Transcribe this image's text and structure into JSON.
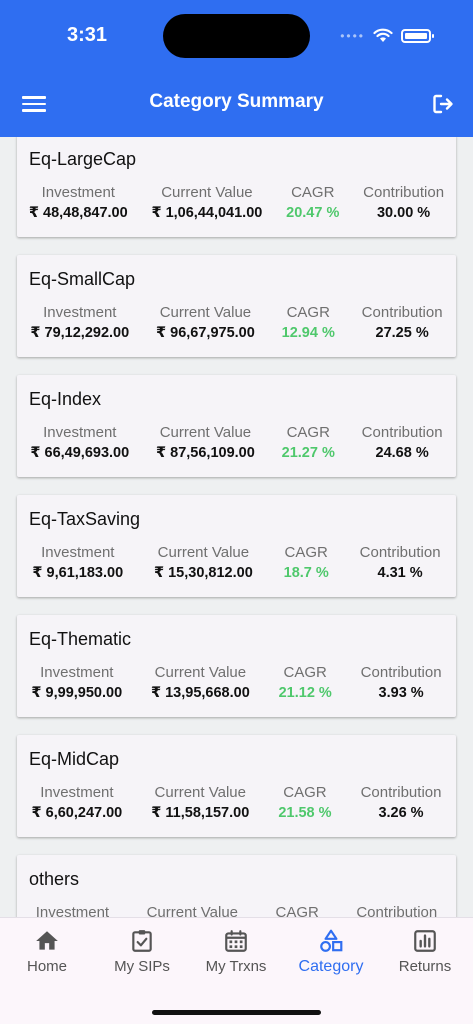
{
  "status_bar": {
    "time": "3:31",
    "dots": "••••",
    "wifi_icon": "wifi-icon",
    "battery_icon": "battery-icon"
  },
  "header": {
    "title": "Category Summary",
    "menu_icon": "hamburger-menu-icon",
    "logout_icon": "logout-icon"
  },
  "labels": {
    "investment": "Investment",
    "current_value": "Current Value",
    "cagr": "CAGR",
    "contribution": "Contribution"
  },
  "colors": {
    "primary": "#2f6ef1",
    "cagr_green": "#4fc86c"
  },
  "categories": [
    {
      "name": "Eq-LargeCap",
      "investment": "₹ 48,48,847.00",
      "current_value": "₹ 1,06,44,041.00",
      "cagr": "20.47 %",
      "contribution": "30.00 %"
    },
    {
      "name": "Eq-SmallCap",
      "investment": "₹ 79,12,292.00",
      "current_value": "₹ 96,67,975.00",
      "cagr": "12.94 %",
      "contribution": "27.25 %"
    },
    {
      "name": "Eq-Index",
      "investment": "₹ 66,49,693.00",
      "current_value": "₹ 87,56,109.00",
      "cagr": "21.27 %",
      "contribution": "24.68 %"
    },
    {
      "name": "Eq-TaxSaving",
      "investment": "₹ 9,61,183.00",
      "current_value": "₹ 15,30,812.00",
      "cagr": "18.7 %",
      "contribution": "4.31 %"
    },
    {
      "name": "Eq-Thematic",
      "investment": "₹ 9,99,950.00",
      "current_value": "₹ 13,95,668.00",
      "cagr": "21.12 %",
      "contribution": "3.93 %"
    },
    {
      "name": "Eq-MidCap",
      "investment": "₹ 6,60,247.00",
      "current_value": "₹ 11,58,157.00",
      "cagr": "21.58 %",
      "contribution": "3.26 %"
    },
    {
      "name": "others",
      "investment": "",
      "current_value": "",
      "cagr": "",
      "contribution": ""
    }
  ],
  "tabs": [
    {
      "label": "Home",
      "icon": "home-icon"
    },
    {
      "label": "My SIPs",
      "icon": "clipboard-check-icon"
    },
    {
      "label": "My Trxns",
      "icon": "calendar-icon"
    },
    {
      "label": "Category",
      "icon": "category-shapes-icon",
      "active": true
    },
    {
      "label": "Returns",
      "icon": "bar-chart-icon"
    }
  ]
}
